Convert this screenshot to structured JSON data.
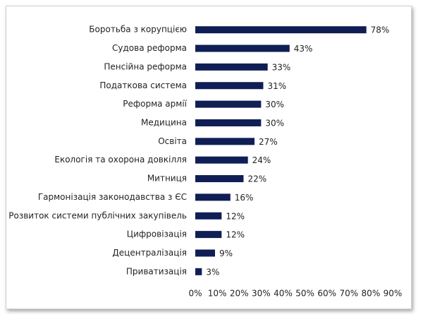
{
  "chart_data": {
    "type": "bar",
    "orientation": "horizontal",
    "categories": [
      "Боротьба з корупцією",
      "Судова реформа",
      "Пенсійна реформа",
      "Податкова система",
      "Реформа армії",
      "Медицина",
      "Освіта",
      "Екологія та охорона довкілля",
      "Митниця",
      "Гармонізація законодавства з ЄС",
      "Розвиток системи публічних закупівель",
      "Цифровізація",
      "Децентралізація",
      "Приватизація"
    ],
    "values": [
      78,
      43,
      33,
      31,
      30,
      30,
      27,
      24,
      22,
      16,
      12,
      12,
      9,
      3
    ],
    "value_labels": [
      "78%",
      "43%",
      "33%",
      "31%",
      "30%",
      "30%",
      "27%",
      "24%",
      "22%",
      "16%",
      "12%",
      "12%",
      "9%",
      "3%"
    ],
    "color": "#0f1f55",
    "xlim": [
      0,
      90
    ],
    "xticks": [
      {
        "value": 0,
        "label": "0%"
      },
      {
        "value": 10,
        "label": "10%"
      },
      {
        "value": 20,
        "label": "20%"
      },
      {
        "value": 30,
        "label": "30%"
      },
      {
        "value": 40,
        "label": "40%"
      },
      {
        "value": 50,
        "label": "50%"
      },
      {
        "value": 60,
        "label": "60%"
      },
      {
        "value": 70,
        "label": "70%"
      },
      {
        "value": 80,
        "label": "80%"
      },
      {
        "value": 90,
        "label": "90%"
      }
    ],
    "grid": false
  }
}
